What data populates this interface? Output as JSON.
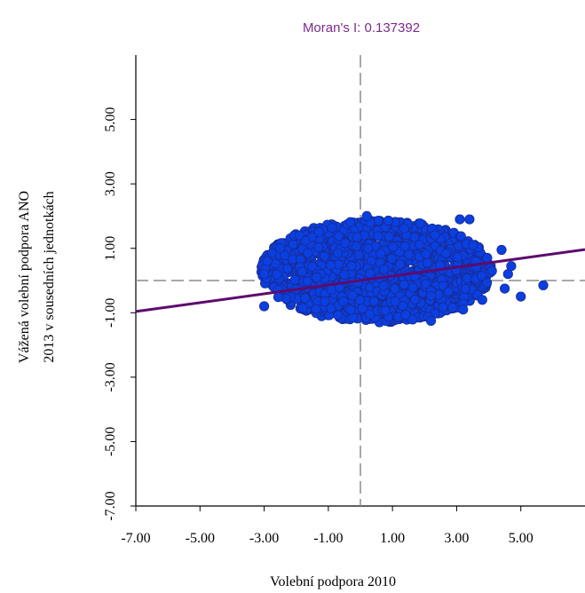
{
  "chart_data": {
    "type": "scatter",
    "title": "Moran's I: 0.137392",
    "xlabel": "Volební podpora 2010",
    "ylabel": [
      "Vážená volební podpora ANO",
      "2013 v sousedních jednotkách"
    ],
    "xlim": [
      -7,
      7
    ],
    "ylim": [
      -7,
      7
    ],
    "xticks": [
      "-7.00",
      "-5.00",
      "-3.00",
      "-1.00",
      "1.00",
      "3.00",
      "5.00"
    ],
    "yticks": [
      "-7.00",
      "-5.00",
      "-3.00",
      "-1.00",
      "1.00",
      "3.00",
      "5.00"
    ],
    "grid": false,
    "reference_lines": {
      "x": 0,
      "y": 0,
      "style": "dashed"
    },
    "regression": {
      "slope": 0.137392,
      "intercept": 0.0
    },
    "point_cloud": {
      "x_range": [
        -3.1,
        4.5
      ],
      "y_range": [
        -1.3,
        2.0
      ],
      "count": 1500
    },
    "outliers": [
      [
        4.4,
        0.95
      ],
      [
        5.7,
        -0.15
      ],
      [
        5.0,
        -0.5
      ],
      [
        4.6,
        0.2
      ],
      [
        4.5,
        -0.25
      ],
      [
        4.7,
        0.45
      ],
      [
        3.4,
        1.9
      ],
      [
        3.1,
        1.9
      ],
      [
        3.6,
        0.6
      ],
      [
        4.1,
        0.3
      ],
      [
        3.8,
        -0.6
      ],
      [
        3.2,
        -0.9
      ],
      [
        -2.9,
        0.6
      ],
      [
        -3.0,
        -0.8
      ],
      [
        -2.5,
        1.0
      ],
      [
        -3.0,
        0.2
      ],
      [
        2.2,
        -1.25
      ],
      [
        0.2,
        2.0
      ]
    ],
    "colors": {
      "points": "#0a3fe0",
      "point_edge": "#1a2a8f",
      "regression_line": "#5c0b6e",
      "reference_lines": "#8c8c8c",
      "title": "#7b2a8c"
    }
  }
}
